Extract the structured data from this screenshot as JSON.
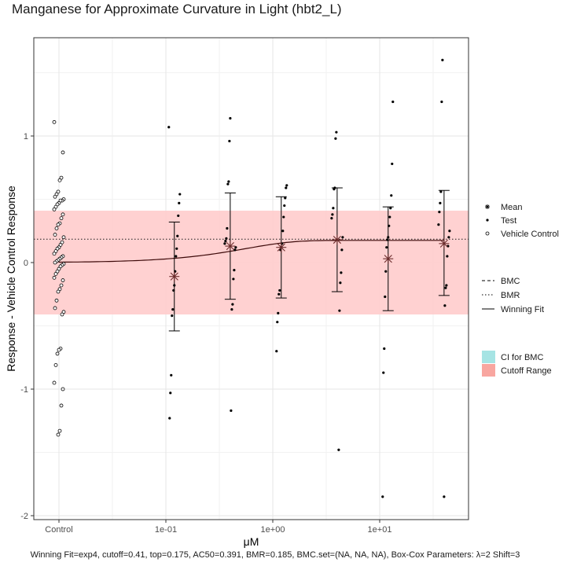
{
  "title": "Manganese for Approximate Curvature in Light (hbt2_L)",
  "footnote": "Winning Fit=exp4, cutoff=0.41, top=0.175, AC50=0.391, BMR=0.185, BMC.set=(NA, NA, NA), Box-Cox Parameters: λ=2 Shift=3",
  "chart_data": {
    "type": "scatter",
    "title": "Manganese for Approximate Curvature in Light (hbt2_L)",
    "xlabel": "μM",
    "ylabel": "Response - Vehicle Control Response",
    "x_scale": "log10",
    "x_ticks": [
      "Control",
      "1e-01",
      "1e+00",
      "1e+01"
    ],
    "y_ticks": [
      -2,
      -1,
      0,
      1
    ],
    "ylim": [
      -2.02,
      1.77
    ],
    "grid": true,
    "legend_position": "right",
    "cutoff": 0.41,
    "bmr": 0.185,
    "fit": {
      "model": "exp4",
      "top": 0.175,
      "ac50": 0.391
    },
    "legend": {
      "points": [
        "Mean",
        "Test",
        "Vehicle Control"
      ],
      "lines": [
        "BMC",
        "BMR",
        "Winning Fit"
      ],
      "fills": [
        "CI for BMC",
        "Cutoff Range"
      ]
    },
    "colors": {
      "cutoff_range": "#ffcccc",
      "cutoff_legend": "#f8a6a0",
      "ci_bmc": "#a6e4e4",
      "points": "#000000",
      "fit": "#3d0a0a",
      "mean": "#6b2c2c"
    },
    "vehicle_control": [
      1.11,
      0.87,
      0.67,
      0.65,
      0.56,
      0.54,
      0.52,
      0.5,
      0.49,
      0.49,
      0.47,
      0.46,
      0.44,
      0.42,
      0.38,
      0.35,
      0.31,
      0.3,
      0.27,
      0.22,
      0.2,
      0.16,
      0.14,
      0.12,
      0.11,
      0.09,
      0.07,
      0.05,
      0.04,
      0.03,
      0.02,
      0.01,
      0.0,
      -0.01,
      -0.02,
      -0.03,
      -0.05,
      -0.07,
      -0.09,
      -0.12,
      -0.14,
      -0.18,
      -0.21,
      -0.23,
      -0.3,
      -0.36,
      -0.39,
      -0.41,
      -0.68,
      -0.69,
      -0.72,
      -0.81,
      -0.95,
      -1.0,
      -1.13,
      -1.33,
      -1.36
    ],
    "concentrations": [
      0.12,
      0.4,
      1.2,
      4.0,
      12.0,
      40.0
    ],
    "test_points": [
      [
        1.07,
        0.54,
        0.47,
        0.37,
        0.21,
        0.11,
        0.05,
        -0.07,
        -0.18,
        -0.22,
        -0.37,
        -0.42,
        -0.89,
        -1.03,
        -1.23
      ],
      [
        1.14,
        0.96,
        0.64,
        0.62,
        0.27,
        0.19,
        0.17,
        0.15,
        0.12,
        0.1,
        -0.06,
        -0.13,
        -0.33,
        -0.37,
        -1.17
      ],
      [
        0.61,
        0.59,
        0.51,
        0.45,
        0.36,
        0.25,
        0.15,
        0.12,
        0.1,
        -0.22,
        -0.25,
        -0.4,
        -0.47,
        -0.7
      ],
      [
        1.03,
        0.98,
        0.59,
        0.58,
        0.43,
        0.38,
        0.35,
        0.2,
        0.1,
        -0.08,
        -0.16,
        -0.38,
        -1.48
      ],
      [
        1.27,
        0.78,
        0.53,
        0.43,
        0.36,
        0.29,
        0.2,
        0.18,
        0.12,
        -0.07,
        -0.27,
        -0.68,
        -0.87,
        -1.85
      ],
      [
        1.6,
        1.27,
        0.56,
        0.47,
        0.4,
        0.3,
        0.25,
        0.2,
        0.13,
        0.05,
        -0.18,
        -0.2,
        -0.34,
        -1.85
      ]
    ],
    "means": [
      -0.11,
      0.13,
      0.12,
      0.18,
      0.03,
      0.15
    ],
    "error_bars": [
      [
        -0.54,
        0.32
      ],
      [
        -0.29,
        0.55
      ],
      [
        -0.28,
        0.52
      ],
      [
        -0.23,
        0.59
      ],
      [
        -0.38,
        0.44
      ],
      [
        -0.26,
        0.57
      ]
    ]
  }
}
